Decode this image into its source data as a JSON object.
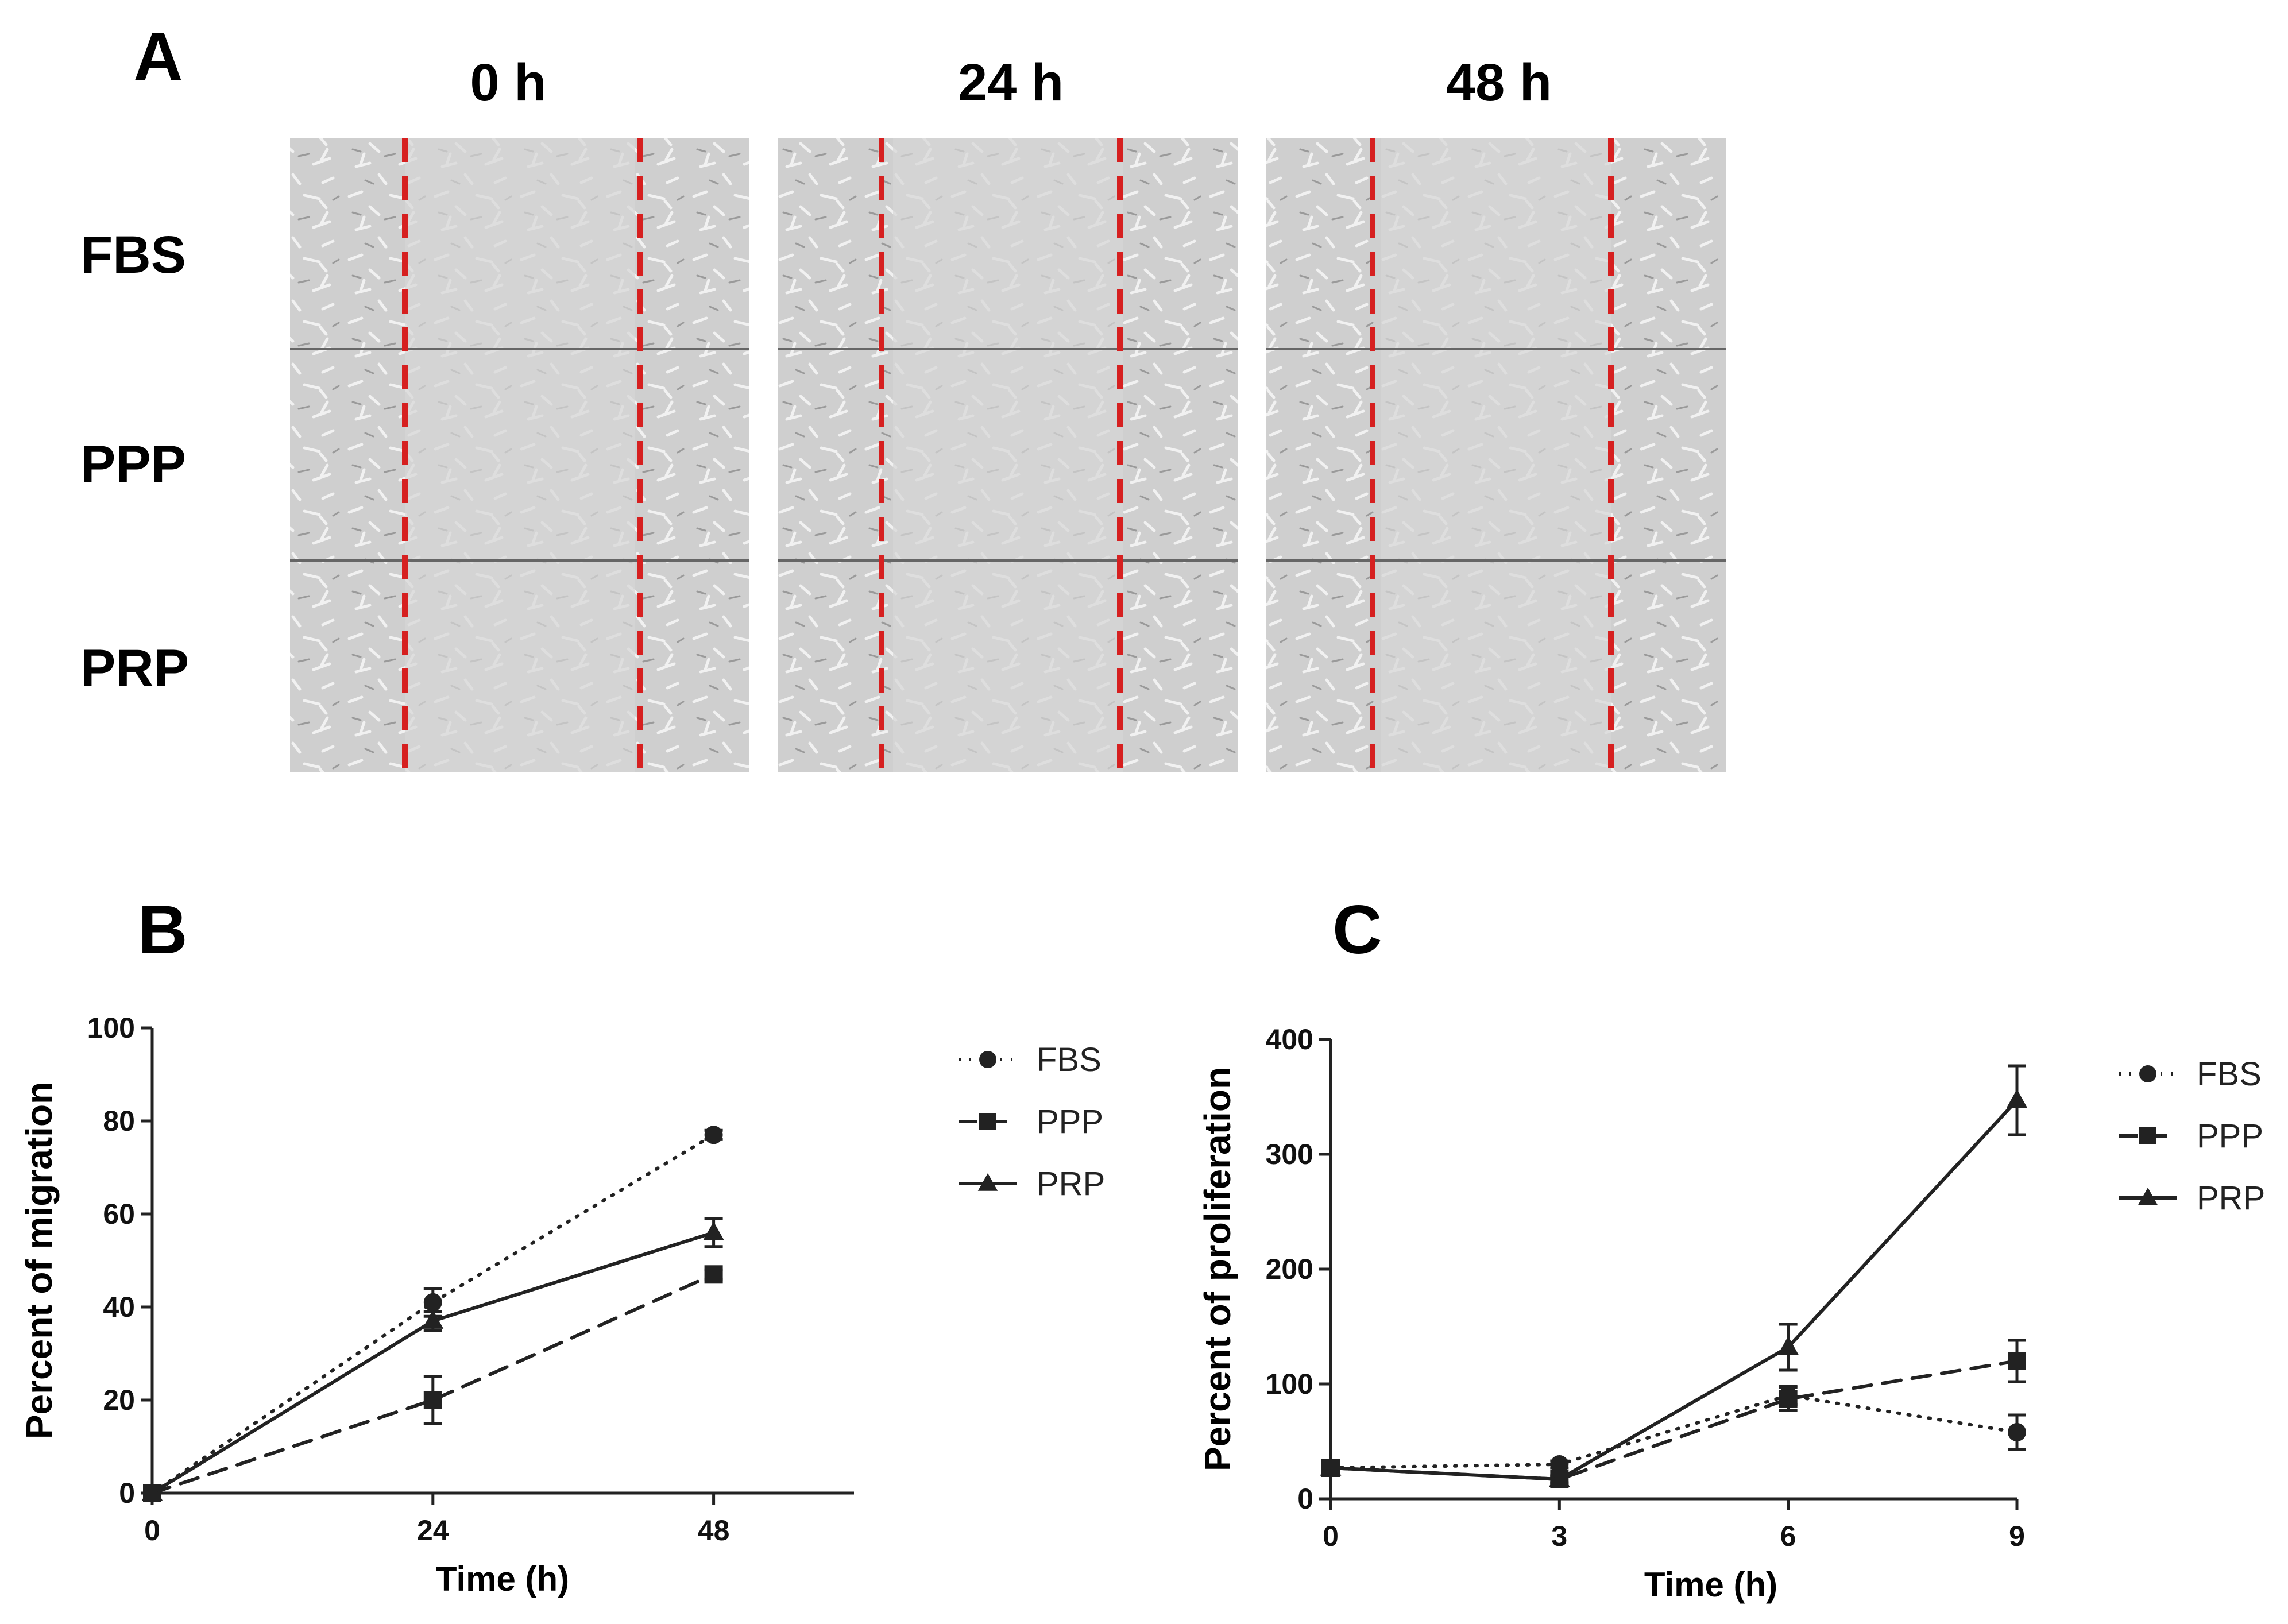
{
  "panel_a": {
    "label": "A",
    "columns": [
      "0 h",
      "24 h",
      "48 h"
    ],
    "rows": [
      "FBS",
      "PPP",
      "PRP"
    ]
  },
  "colors": {
    "marker": "#d62020",
    "line": "#222222",
    "micro": "#c9c9c9"
  },
  "chart_data": [
    {
      "panel": "B",
      "type": "line",
      "title": "",
      "xlabel": "Time (h)",
      "ylabel": "Percent of migration",
      "x": [
        0,
        24,
        48
      ],
      "xticks": [
        "0",
        "24",
        "48"
      ],
      "yticks": [
        "0",
        "20",
        "40",
        "60",
        "80",
        "100"
      ],
      "xlim": [
        0,
        60
      ],
      "ylim": [
        0,
        100
      ],
      "legend_position": "right",
      "series": [
        {
          "name": "FBS",
          "style": "dotted",
          "marker": "circle",
          "values": [
            0,
            41,
            77
          ],
          "errors": [
            0,
            3,
            1
          ]
        },
        {
          "name": "PPP",
          "style": "dashed",
          "marker": "square",
          "values": [
            0,
            20,
            47
          ],
          "errors": [
            0,
            5,
            1
          ]
        },
        {
          "name": "PRP",
          "style": "solid",
          "marker": "triangle",
          "values": [
            0,
            37,
            56
          ],
          "errors": [
            0,
            2,
            3
          ]
        }
      ]
    },
    {
      "panel": "C",
      "type": "line",
      "title": "",
      "xlabel": "Time (h)",
      "ylabel": "Percent of proliferation",
      "x": [
        0,
        3,
        6,
        9
      ],
      "xticks": [
        "0",
        "3",
        "6",
        "9"
      ],
      "yticks": [
        "0",
        "100",
        "200",
        "300",
        "400"
      ],
      "xlim": [
        0,
        9
      ],
      "ylim": [
        0,
        400
      ],
      "legend_position": "right",
      "series": [
        {
          "name": "FBS",
          "style": "dotted",
          "marker": "circle",
          "values": [
            27,
            30,
            90,
            58
          ],
          "errors": [
            3,
            3,
            8,
            15
          ]
        },
        {
          "name": "PPP",
          "style": "dashed",
          "marker": "square",
          "values": [
            27,
            17,
            87,
            120
          ],
          "errors": [
            3,
            3,
            10,
            18
          ]
        },
        {
          "name": "PRP",
          "style": "solid",
          "marker": "triangle",
          "values": [
            27,
            17,
            132,
            347
          ],
          "errors": [
            3,
            3,
            20,
            30
          ]
        }
      ]
    }
  ]
}
